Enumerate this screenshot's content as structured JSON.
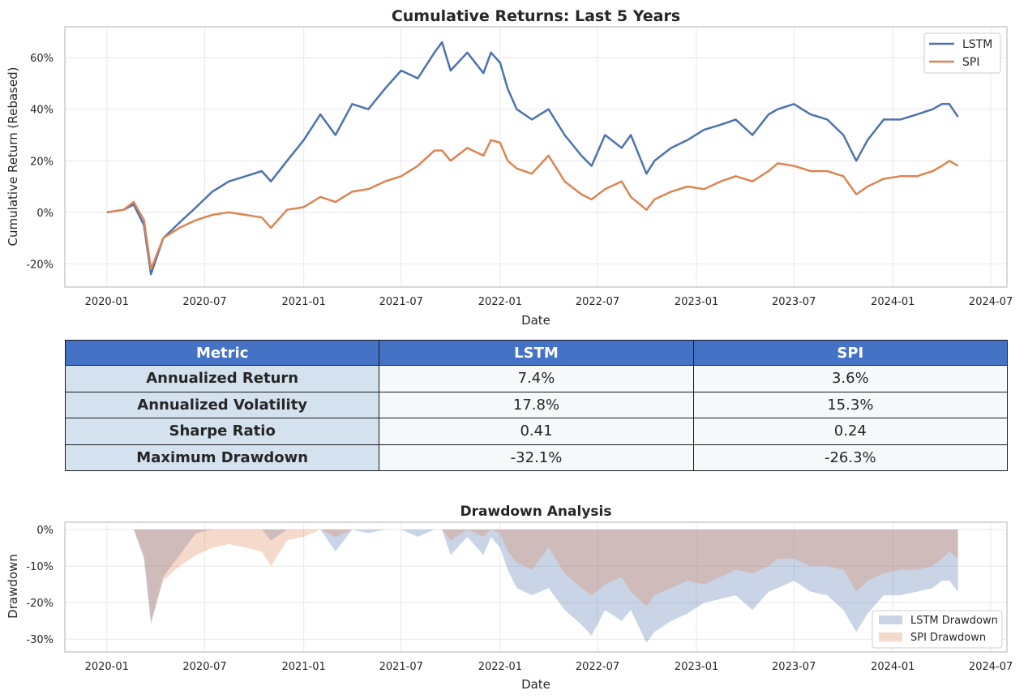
{
  "colors": {
    "lstm": "#4c72b0",
    "spi": "#dd8452",
    "header": "#4472c4",
    "metric_col": "#d4e1ee",
    "value_cell": "#f6f8fa",
    "grid": "#e8e8e8",
    "frame": "#cccccc"
  },
  "chart_data": [
    {
      "type": "line",
      "title": "Cumulative Returns: Last 5 Years",
      "xlabel": "Date",
      "ylabel": "Cumulative Return (Rebased)",
      "x_ticks": [
        "2020-01",
        "2020-07",
        "2021-01",
        "2021-07",
        "2022-01",
        "2022-07",
        "2023-01",
        "2023-07",
        "2024-01",
        "2024-07"
      ],
      "y_ticks": [
        "-20%",
        "0%",
        "20%",
        "40%",
        "60%"
      ],
      "xlim": [
        "2019-10-15",
        "2024-07-31"
      ],
      "ylim": [
        -29,
        72
      ],
      "grid": true,
      "legend": "top-right",
      "x": [
        "2020-01-01",
        "2020-02-01",
        "2020-02-20",
        "2020-03-10",
        "2020-03-23",
        "2020-04-15",
        "2020-05-15",
        "2020-06-15",
        "2020-07-15",
        "2020-08-15",
        "2020-09-15",
        "2020-10-15",
        "2020-11-01",
        "2020-12-01",
        "2021-01-01",
        "2021-02-01",
        "2021-03-01",
        "2021-04-01",
        "2021-05-01",
        "2021-06-01",
        "2021-07-01",
        "2021-08-01",
        "2021-09-01",
        "2021-09-15",
        "2021-10-01",
        "2021-11-01",
        "2021-12-01",
        "2021-12-15",
        "2022-01-01",
        "2022-01-15",
        "2022-02-01",
        "2022-03-01",
        "2022-04-01",
        "2022-05-01",
        "2022-06-01",
        "2022-06-20",
        "2022-07-15",
        "2022-08-15",
        "2022-09-01",
        "2022-09-30",
        "2022-10-15",
        "2022-11-15",
        "2022-12-15",
        "2023-01-15",
        "2023-02-15",
        "2023-03-15",
        "2023-04-15",
        "2023-05-15",
        "2023-06-01",
        "2023-07-01",
        "2023-08-01",
        "2023-09-01",
        "2023-10-01",
        "2023-10-25",
        "2023-11-15",
        "2023-12-15",
        "2024-01-15",
        "2024-02-15",
        "2024-03-15",
        "2024-04-01",
        "2024-04-15",
        "2024-05-01"
      ],
      "series": [
        {
          "name": "LSTM",
          "values": [
            0,
            1,
            3,
            -5,
            -24,
            -10,
            -4,
            2,
            8,
            12,
            14,
            16,
            12,
            20,
            28,
            38,
            30,
            42,
            40,
            48,
            55,
            52,
            62,
            66,
            55,
            62,
            54,
            62,
            58,
            48,
            40,
            36,
            40,
            30,
            22,
            18,
            30,
            25,
            30,
            15,
            20,
            25,
            28,
            32,
            34,
            36,
            30,
            38,
            40,
            42,
            38,
            36,
            30,
            20,
            28,
            36,
            36,
            38,
            40,
            42,
            42,
            37
          ]
        },
        {
          "name": "SPI",
          "values": [
            0,
            1,
            4,
            -3,
            -22,
            -10,
            -6,
            -3,
            -1,
            0,
            -1,
            -2,
            -6,
            1,
            2,
            6,
            4,
            8,
            9,
            12,
            14,
            18,
            24,
            24,
            20,
            25,
            22,
            28,
            27,
            20,
            17,
            15,
            22,
            12,
            7,
            5,
            9,
            12,
            6,
            1,
            5,
            8,
            10,
            9,
            12,
            14,
            12,
            16,
            19,
            18,
            16,
            16,
            14,
            7,
            10,
            13,
            14,
            14,
            16,
            18,
            20,
            18
          ]
        }
      ]
    },
    {
      "type": "area",
      "title": "Drawdown Analysis",
      "xlabel": "Date",
      "ylabel": "Drawdown",
      "x_ticks": [
        "2020-01",
        "2020-07",
        "2021-01",
        "2021-07",
        "2022-01",
        "2022-07",
        "2023-01",
        "2023-07",
        "2024-01",
        "2024-07"
      ],
      "y_ticks": [
        "0%",
        "-10%",
        "-20%",
        "-30%"
      ],
      "xlim": [
        "2019-10-15",
        "2024-07-31"
      ],
      "ylim": [
        -33.5,
        2
      ],
      "grid": true,
      "legend": "bottom-right",
      "x": [
        "2020-01-01",
        "2020-02-01",
        "2020-02-20",
        "2020-03-10",
        "2020-03-23",
        "2020-04-15",
        "2020-05-15",
        "2020-06-15",
        "2020-07-15",
        "2020-08-15",
        "2020-09-15",
        "2020-10-15",
        "2020-11-01",
        "2020-12-01",
        "2021-01-01",
        "2021-02-01",
        "2021-03-01",
        "2021-04-01",
        "2021-05-01",
        "2021-06-01",
        "2021-07-01",
        "2021-08-01",
        "2021-09-01",
        "2021-09-15",
        "2021-10-01",
        "2021-11-01",
        "2021-12-01",
        "2021-12-15",
        "2022-01-01",
        "2022-01-15",
        "2022-02-01",
        "2022-03-01",
        "2022-04-01",
        "2022-05-01",
        "2022-06-01",
        "2022-06-20",
        "2022-07-15",
        "2022-08-15",
        "2022-09-01",
        "2022-09-30",
        "2022-10-15",
        "2022-11-15",
        "2022-12-15",
        "2023-01-15",
        "2023-02-15",
        "2023-03-15",
        "2023-04-15",
        "2023-05-15",
        "2023-06-01",
        "2023-07-01",
        "2023-08-01",
        "2023-09-01",
        "2023-10-01",
        "2023-10-25",
        "2023-11-15",
        "2023-12-15",
        "2024-01-15",
        "2024-02-15",
        "2024-03-15",
        "2024-04-01",
        "2024-04-15",
        "2024-05-01"
      ],
      "series": [
        {
          "name": "LSTM Drawdown",
          "values": [
            0,
            0,
            0,
            -8,
            -26,
            -13,
            -7,
            -1,
            0,
            0,
            0,
            0,
            -3,
            0,
            0,
            0,
            -6,
            0,
            -1,
            0,
            0,
            -2,
            0,
            0,
            -7,
            -2,
            -7,
            -2,
            -5,
            -11,
            -16,
            -18,
            -16,
            -22,
            -26,
            -29,
            -22,
            -25,
            -22,
            -31,
            -28,
            -25,
            -23,
            -20,
            -19,
            -18,
            -22,
            -17,
            -16,
            -14,
            -17,
            -18,
            -22,
            -28,
            -23,
            -18,
            -18,
            -17,
            -16,
            -14,
            -14,
            -17
          ]
        },
        {
          "name": "SPI Drawdown",
          "values": [
            0,
            0,
            0,
            -7,
            -25,
            -14,
            -10,
            -7,
            -5,
            -4,
            -5,
            -6,
            -10,
            -3,
            -2,
            0,
            -2,
            0,
            0,
            0,
            0,
            0,
            0,
            0,
            -3,
            0,
            -2,
            0,
            -1,
            -6,
            -9,
            -11,
            -5,
            -12,
            -16,
            -18,
            -15,
            -13,
            -17,
            -21,
            -18,
            -16,
            -14,
            -15,
            -13,
            -11,
            -12,
            -10,
            -8,
            -8,
            -10,
            -10,
            -11,
            -17,
            -14,
            -12,
            -11,
            -11,
            -10,
            -8,
            -6,
            -8
          ]
        }
      ]
    }
  ],
  "table": {
    "headers": [
      "Metric",
      "LSTM",
      "SPI"
    ],
    "rows": [
      [
        "Annualized Return",
        "7.4%",
        "3.6%"
      ],
      [
        "Annualized Volatility",
        "17.8%",
        "15.3%"
      ],
      [
        "Sharpe Ratio",
        "0.41",
        "0.24"
      ],
      [
        "Maximum Drawdown",
        "-32.1%",
        "-26.3%"
      ]
    ]
  }
}
